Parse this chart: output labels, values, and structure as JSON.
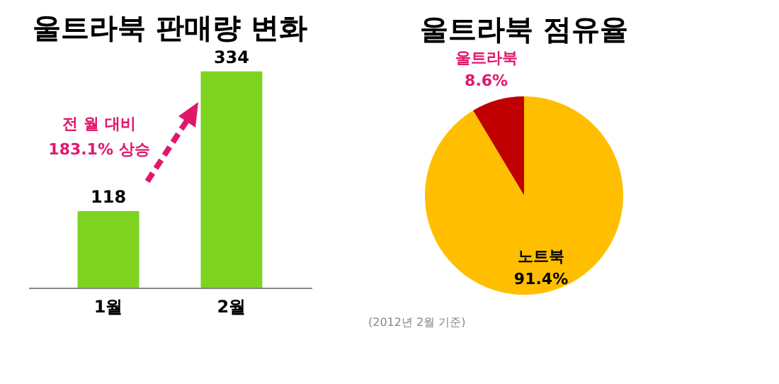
{
  "chart_data": [
    {
      "type": "bar",
      "title": "울트라북 판매량 변화",
      "categories": [
        "1월",
        "2월"
      ],
      "values": [
        118,
        334
      ],
      "color": "#7ed321",
      "data_labels": true,
      "annotations": [
        "전 월 대비\n183.1% 상승"
      ]
    },
    {
      "type": "pie",
      "title": "울트라북 점유율",
      "categories": [
        "울트라북",
        "노트북"
      ],
      "values": [
        8.6,
        91.4
      ],
      "colors": [
        "#c00000",
        "#ffbf00"
      ],
      "value_labels": [
        "8.6%",
        "91.4%"
      ],
      "annotations": [
        "(2012년 2월 기준)"
      ]
    }
  ]
}
